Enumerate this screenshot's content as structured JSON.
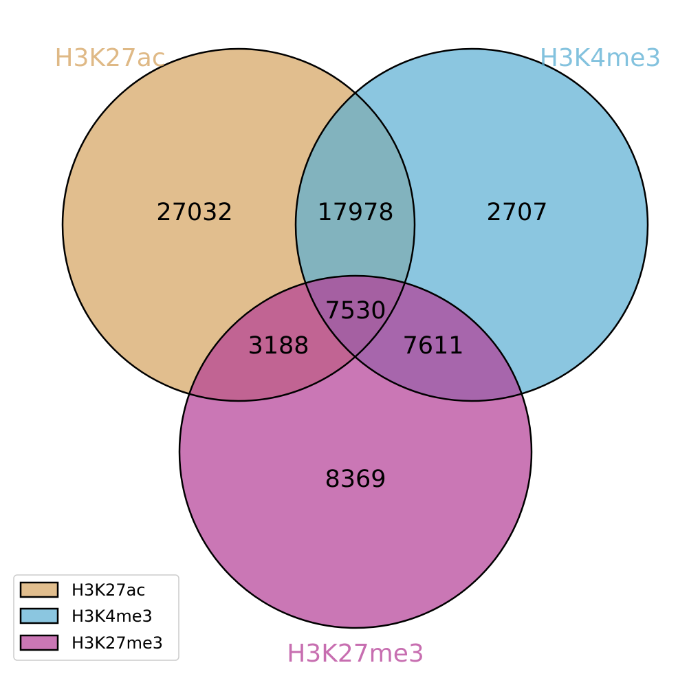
{
  "sets": [
    {
      "key": "a",
      "name": "H3K27ac",
      "color": "#d4a25e"
    },
    {
      "key": "b",
      "name": "H3K4me3",
      "color": "#5aaed3"
    },
    {
      "key": "c",
      "name": "H3K27me3",
      "color": "#b43d96"
    }
  ],
  "regions": {
    "a_only": "27032",
    "ab": "17978",
    "b_only": "2707",
    "abc": "7530",
    "ac": "3188",
    "bc": "7611",
    "c_only": "8369"
  },
  "legend": {
    "items": [
      "H3K27ac",
      "H3K4me3",
      "H3K27me3"
    ]
  }
}
